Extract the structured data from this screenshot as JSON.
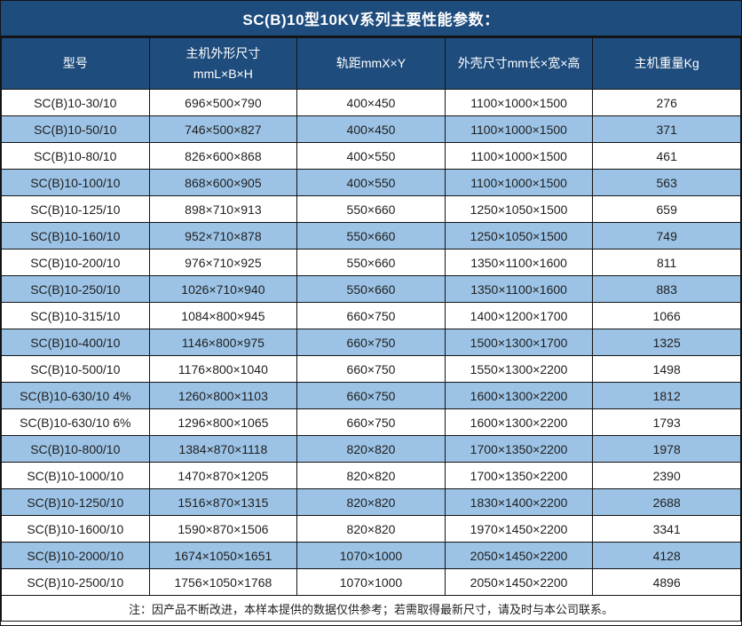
{
  "title": "SC(B)10型10KV系列主要性能参数：",
  "colors": {
    "header_bg": "#1E4C7D",
    "alt_row_bg": "#9CC3E5",
    "border": "#141414",
    "header_text": "#FFFFFF",
    "cell_text": "#1F1F1F"
  },
  "table": {
    "headers": [
      {
        "label": "型号"
      },
      {
        "label": "主机外形尺寸\nmmL×B×H"
      },
      {
        "label": "轨距mmX×Y"
      },
      {
        "label": "外壳尺寸mm长×宽×高"
      },
      {
        "label": "主机重量Kg"
      }
    ],
    "rows": [
      [
        "SC(B)10-30/10",
        "696×500×790",
        "400×450",
        "1100×1000×1500",
        "276"
      ],
      [
        "SC(B)10-50/10",
        "746×500×827",
        "400×450",
        "1100×1000×1500",
        "371"
      ],
      [
        "SC(B)10-80/10",
        "826×600×868",
        "400×550",
        "1100×1000×1500",
        "461"
      ],
      [
        "SC(B)10-100/10",
        "868×600×905",
        "400×550",
        "1100×1000×1500",
        "563"
      ],
      [
        "SC(B)10-125/10",
        "898×710×913",
        "550×660",
        "1250×1050×1500",
        "659"
      ],
      [
        "SC(B)10-160/10",
        "952×710×878",
        "550×660",
        "1250×1050×1500",
        "749"
      ],
      [
        "SC(B)10-200/10",
        "976×710×925",
        "550×660",
        "1350×1100×1600",
        "811"
      ],
      [
        "SC(B)10-250/10",
        "1026×710×940",
        "550×660",
        "1350×1100×1600",
        "883"
      ],
      [
        "SC(B)10-315/10",
        "1084×800×945",
        "660×750",
        "1400×1200×1700",
        "1066"
      ],
      [
        "SC(B)10-400/10",
        "1146×800×975",
        "660×750",
        "1500×1300×1700",
        "1325"
      ],
      [
        "SC(B)10-500/10",
        "1176×800×1040",
        "660×750",
        "1550×1300×2200",
        "1498"
      ],
      [
        "SC(B)10-630/10 4%",
        "1260×800×1103",
        "660×750",
        "1600×1300×2200",
        "1812"
      ],
      [
        "SC(B)10-630/10 6%",
        "1296×800×1065",
        "660×750",
        "1600×1300×2200",
        "1793"
      ],
      [
        "SC(B)10-800/10",
        "1384×870×1118",
        "820×820",
        "1700×1350×2200",
        "1978"
      ],
      [
        "SC(B)10-1000/10",
        "1470×870×1205",
        "820×820",
        "1700×1350×2200",
        "2390"
      ],
      [
        "SC(B)10-1250/10",
        "1516×870×1315",
        "820×820",
        "1830×1400×2200",
        "2688"
      ],
      [
        "SC(B)10-1600/10",
        "1590×870×1506",
        "820×820",
        "1970×1450×2200",
        "3341"
      ],
      [
        "SC(B)10-2000/10",
        "1674×1050×1651",
        "1070×1000",
        "2050×1450×2200",
        "4128"
      ],
      [
        "SC(B)10-2500/10",
        "1756×1050×1768",
        "1070×1000",
        "2050×1450×2200",
        "4896"
      ]
    ],
    "footnote": "注：因产品不断改进，本样本提供的数据仅供参考；若需取得最新尺寸，请及时与本公司联系。"
  }
}
